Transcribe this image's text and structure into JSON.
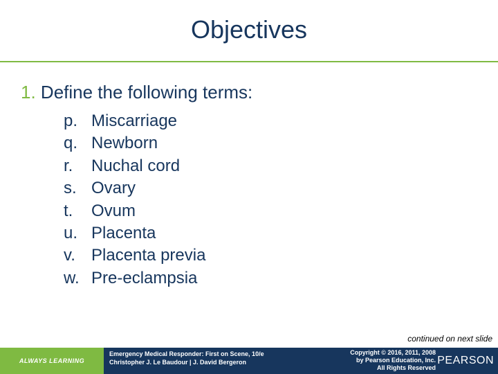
{
  "title": "Objectives",
  "main_number": "1.",
  "main_text": "Define the following terms:",
  "items": [
    {
      "marker": "p.",
      "text": "Miscarriage"
    },
    {
      "marker": "q.",
      "text": "Newborn"
    },
    {
      "marker": "r.",
      "text": "Nuchal cord"
    },
    {
      "marker": "s.",
      "text": "Ovary"
    },
    {
      "marker": "t.",
      "text": "Ovum"
    },
    {
      "marker": "u.",
      "text": "Placenta"
    },
    {
      "marker": "v.",
      "text": "Placenta previa"
    },
    {
      "marker": "w.",
      "text": "Pre-eclampsia"
    }
  ],
  "continued": "continued on next slide",
  "footer": {
    "always_learning": "ALWAYS LEARNING",
    "book_title": "Emergency Medical Responder: First on Scene, 10/e",
    "book_authors": "Christopher J. Le Baudour | J. David Bergeron",
    "copyright_line1": "Copyright © 2016, 2011, 2008",
    "copyright_line2": "by Pearson Education, Inc.",
    "copyright_line3": "All Rights Reserved",
    "pearson": "PEARSON"
  },
  "colors": {
    "navy": "#17365d",
    "green": "#7fba42",
    "white": "#ffffff"
  }
}
